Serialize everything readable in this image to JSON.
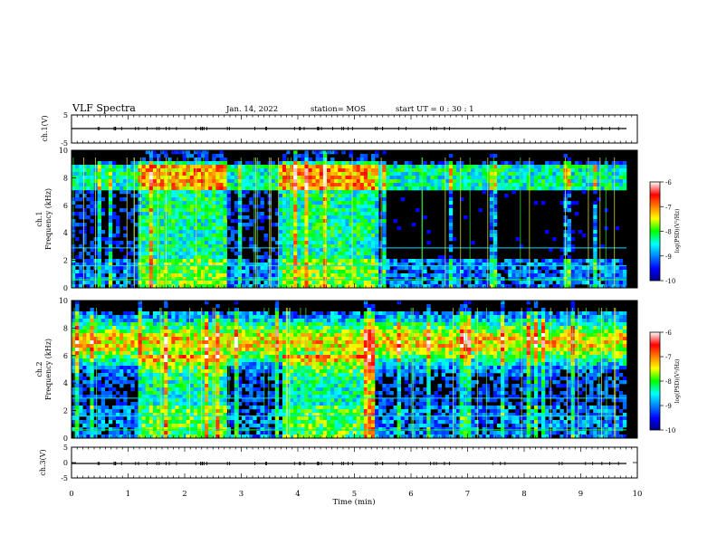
{
  "header": {
    "title": "VLF Spectra",
    "date": "Jan. 14, 2022",
    "station": "station= MOS",
    "start_ut": "start  UT =   0 : 30 : 1"
  },
  "chart_data": [
    {
      "type": "line",
      "panel": "ch1-voltage",
      "ylabel": "ch.1(V)",
      "ylim": [
        -5,
        5
      ],
      "yticks": [
        5,
        -5
      ],
      "xlim": [
        0,
        10
      ],
      "series": [
        {
          "x": [
            0,
            9.8
          ],
          "values": [
            0,
            0
          ]
        }
      ]
    },
    {
      "type": "heatmap",
      "panel": "ch1-spectrogram",
      "ylabel": "ch.1\nFrequency (kHz)",
      "ylim": [
        0,
        10
      ],
      "yticks": [
        0,
        2,
        4,
        6,
        8,
        10
      ],
      "xlim": [
        0,
        10
      ],
      "colorbar": {
        "label": "log(PSD)(V²/Hz)",
        "min": -10,
        "max": -6,
        "ticks": [
          -6,
          -7,
          -8,
          -9,
          -10
        ]
      }
    },
    {
      "type": "heatmap",
      "panel": "ch2-spectrogram",
      "ylabel": "ch.2\nFrequency (kHz)",
      "ylim": [
        0,
        10
      ],
      "yticks": [
        0,
        2,
        4,
        6,
        8,
        10
      ],
      "xlim": [
        0,
        10
      ],
      "colorbar": {
        "label": "log(PSD)(V²/Hz)",
        "min": -10,
        "max": -6,
        "ticks": [
          -6,
          -7,
          -8,
          -9,
          -10
        ]
      }
    },
    {
      "type": "line",
      "panel": "ch3-voltage",
      "ylabel": "ch.3(V)",
      "ylim": [
        -5,
        5
      ],
      "yticks": [
        5,
        0,
        -5
      ],
      "xlim": [
        0,
        10
      ],
      "xlabel": "Time  (min)",
      "xticks": [
        0,
        1,
        2,
        3,
        4,
        5,
        6,
        7,
        8,
        9,
        10
      ],
      "series": [
        {
          "x": [
            0,
            9.8
          ],
          "values": [
            0,
            0
          ]
        }
      ]
    }
  ]
}
